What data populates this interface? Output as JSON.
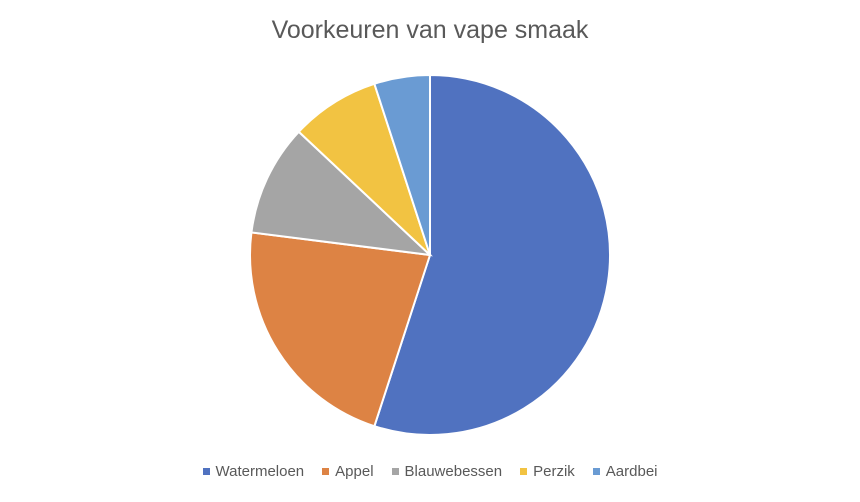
{
  "chart_data": {
    "type": "pie",
    "title": "Voorkeuren van vape smaak",
    "categories": [
      "Watermeloen",
      "Appel",
      "Blauwebessen",
      "Perzik",
      "Aardbei"
    ],
    "values": [
      55,
      22,
      10,
      8,
      5
    ],
    "colors": [
      "#5072C0",
      "#DD8344",
      "#A5A5A5",
      "#F2C342",
      "#6A9BD3"
    ],
    "legend_position": "bottom"
  }
}
